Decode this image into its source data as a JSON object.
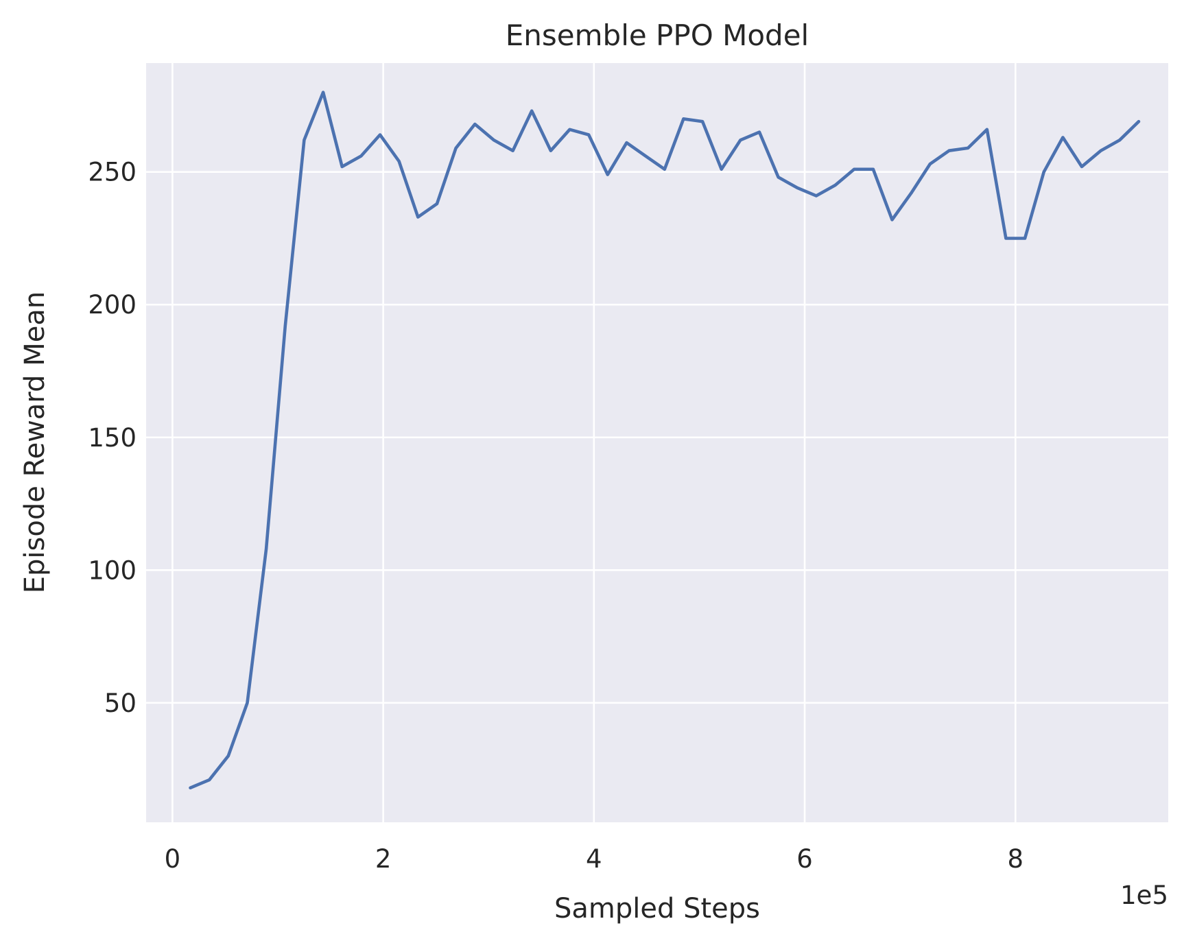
{
  "chart_data": {
    "type": "line",
    "title": "Ensemble PPO Model",
    "xlabel": "Sampled Steps",
    "ylabel": "Episode Reward Mean",
    "x_offset_text": "1e5",
    "xlim": [
      -0.25,
      9.45
    ],
    "ylim": [
      5,
      291
    ],
    "x_ticks": [
      0,
      2,
      4,
      6,
      8
    ],
    "y_ticks": [
      50,
      100,
      150,
      200,
      250
    ],
    "grid": true,
    "background_color": "#eaeaf2",
    "grid_color": "#ffffff",
    "series": [
      {
        "color": "#4c72b0",
        "x": [
          0.17,
          0.35,
          0.53,
          0.71,
          0.89,
          1.07,
          1.25,
          1.43,
          1.61,
          1.79,
          1.97,
          2.15,
          2.33,
          2.51,
          2.69,
          2.87,
          3.05,
          3.23,
          3.41,
          3.59,
          3.77,
          3.95,
          4.13,
          4.31,
          4.49,
          4.67,
          4.85,
          5.03,
          5.21,
          5.39,
          5.57,
          5.75,
          5.93,
          6.11,
          6.29,
          6.47,
          6.65,
          6.83,
          7.01,
          7.19,
          7.37,
          7.55,
          7.73,
          7.91,
          8.09,
          8.27,
          8.45,
          8.63,
          8.81,
          8.99,
          9.17
        ],
        "y": [
          18,
          21,
          30,
          50,
          108,
          192,
          262,
          280,
          252,
          256,
          264,
          254,
          233,
          238,
          259,
          268,
          262,
          258,
          273,
          258,
          266,
          264,
          249,
          261,
          256,
          251,
          270,
          269,
          251,
          262,
          265,
          248,
          244,
          241,
          245,
          251,
          251,
          232,
          242,
          253,
          258,
          259,
          266,
          225,
          225,
          250,
          263,
          252,
          258,
          262,
          269
        ]
      }
    ]
  }
}
